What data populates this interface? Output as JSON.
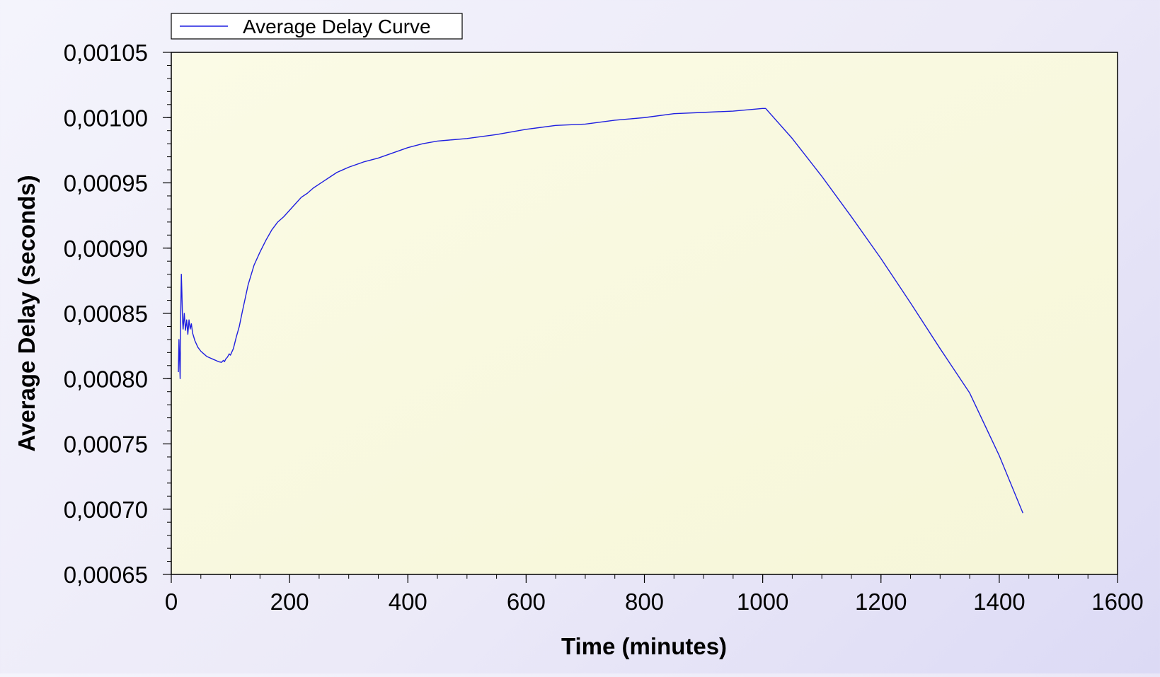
{
  "chart_data": {
    "type": "line",
    "title": "",
    "xlabel": "Time (minutes)",
    "ylabel": "Average Delay (seconds)",
    "xlim": [
      0,
      1600
    ],
    "ylim": [
      0.00065,
      0.00105
    ],
    "x_ticks": [
      0,
      200,
      400,
      600,
      800,
      1000,
      1200,
      1400,
      1600
    ],
    "x_tick_labels": [
      "0",
      "200",
      "400",
      "600",
      "800",
      "1000",
      "1200",
      "1400",
      "1600"
    ],
    "y_ticks": [
      0.00065,
      0.0007,
      0.00075,
      0.0008,
      0.00085,
      0.0009,
      0.00095,
      0.001,
      0.00105
    ],
    "y_tick_labels": [
      "0,00065",
      "0,00070",
      "0,00075",
      "0,00080",
      "0,00085",
      "0,00090",
      "0,00095",
      "0,00100",
      "0,00105"
    ],
    "grid": false,
    "legend": {
      "position": "top-left",
      "entries": [
        "Average Delay Curve"
      ]
    },
    "colors": {
      "series": "#1f1fe0",
      "plot_background_start": "#fbfbe6",
      "plot_background_end": "#f6f6d8",
      "axis": "#000000"
    },
    "series": [
      {
        "name": "Average Delay Curve",
        "x": [
          12,
          13,
          14,
          15,
          16,
          17,
          18,
          19,
          20,
          22,
          24,
          26,
          28,
          30,
          32,
          34,
          36,
          40,
          45,
          50,
          55,
          60,
          65,
          70,
          75,
          80,
          85,
          88,
          90,
          92,
          95,
          98,
          100,
          102,
          105,
          110,
          115,
          120,
          130,
          140,
          150,
          160,
          170,
          180,
          190,
          200,
          210,
          220,
          230,
          240,
          250,
          260,
          270,
          280,
          290,
          300,
          325,
          350,
          375,
          400,
          425,
          450,
          475,
          500,
          550,
          600,
          650,
          700,
          750,
          800,
          850,
          900,
          950,
          1000,
          1005,
          1050,
          1100,
          1150,
          1200,
          1250,
          1300,
          1350,
          1400,
          1440
        ],
        "y": [
          0.000805,
          0.00083,
          0.000815,
          0.0008,
          0.00085,
          0.00088,
          0.000865,
          0.000845,
          0.000838,
          0.00085,
          0.000837,
          0.000845,
          0.000834,
          0.000845,
          0.000838,
          0.000842,
          0.000835,
          0.000829,
          0.000824,
          0.000821,
          0.000819,
          0.000817,
          0.000816,
          0.000815,
          0.000814,
          0.000813,
          0.0008125,
          0.000814,
          0.000813,
          0.000815,
          0.0008165,
          0.000819,
          0.000818,
          0.00082,
          0.000823,
          0.000832,
          0.00084,
          0.000851,
          0.000872,
          0.000887,
          0.000897,
          0.000906,
          0.000914,
          0.00092,
          0.000924,
          0.000929,
          0.000934,
          0.000939,
          0.000942,
          0.000946,
          0.000949,
          0.000952,
          0.000955,
          0.000958,
          0.00096,
          0.000962,
          0.000966,
          0.000969,
          0.000973,
          0.000977,
          0.00098,
          0.000982,
          0.000983,
          0.000984,
          0.000987,
          0.000991,
          0.000994,
          0.000995,
          0.000998,
          0.001,
          0.001003,
          0.001004,
          0.001005,
          0.001007,
          0.001007,
          0.000984,
          0.000955,
          0.000924,
          0.000892,
          0.000858,
          0.000823,
          0.000789,
          0.000741,
          0.000697
        ]
      }
    ]
  }
}
